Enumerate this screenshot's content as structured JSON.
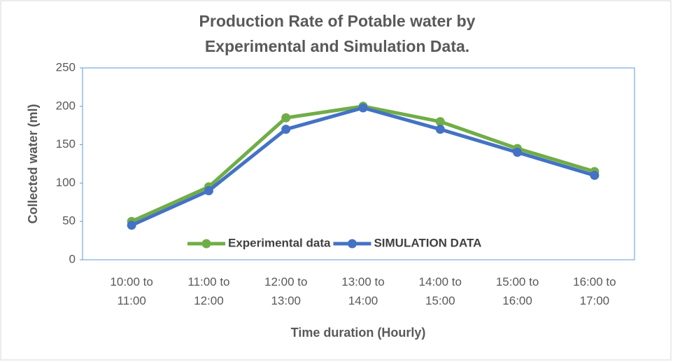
{
  "chart_data": {
    "type": "line",
    "title": "Production Rate of Potable water by Experimental and Simulation Data.",
    "x_label": "Time duration (Hourly)",
    "y_label": "Collected water (ml)",
    "categories": [
      "10:00 to 11:00",
      "11:00 to 12:00",
      "12:00 to 13:00",
      "13:00 to 14:00",
      "14:00 to 15:00",
      "15:00 to 16:00",
      "16:00 to 17:00"
    ],
    "series": [
      {
        "name": "Experimental data",
        "color": "#70ad47",
        "values": [
          50,
          95,
          185,
          200,
          180,
          145,
          115
        ]
      },
      {
        "name": "SIMULATION DATA",
        "color": "#4472c4",
        "values": [
          45,
          90,
          170,
          198,
          170,
          140,
          110
        ]
      }
    ],
    "ylim": [
      0,
      250
    ],
    "yticks": [
      0,
      50,
      100,
      150,
      200,
      250
    ],
    "legend": "bottom"
  }
}
